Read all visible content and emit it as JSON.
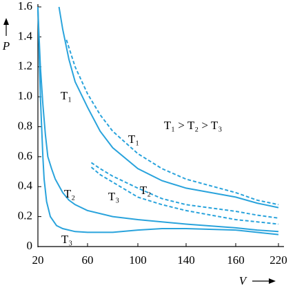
{
  "chart_data": {
    "type": "line",
    "x_label": "V",
    "y_label": "P",
    "annotation": "T₁ > T₂ > T₃",
    "xlim": [
      20,
      220
    ],
    "xticks": [
      20,
      60,
      100,
      140,
      160,
      220
    ],
    "ylim": [
      0,
      1.6
    ],
    "yticks": [
      0,
      0.2,
      0.4,
      0.6,
      0.8,
      {
        "value": 1,
        "label": "1.0"
      },
      1.2,
      1.4,
      1.6
    ],
    "grid": false,
    "series": [
      {
        "name": "T₁",
        "color": "#29a3dc",
        "dashed": false,
        "x": [
          37,
          40,
          45,
          50,
          60,
          70,
          80,
          100,
          120,
          140,
          160,
          190,
          220
        ],
        "values": [
          1.6,
          1.45,
          1.25,
          1.1,
          0.93,
          0.77,
          0.66,
          0.52,
          0.44,
          0.39,
          0.33,
          0.29,
          0.26
        ]
      },
      {
        "name": "T₂",
        "color": "#29a3dc",
        "dashed": false,
        "x": [
          20,
          22,
          24,
          26,
          28,
          31,
          34,
          40,
          45,
          50,
          60,
          80,
          100,
          140,
          160,
          190,
          220
        ],
        "values": [
          1.58,
          1.2,
          0.95,
          0.75,
          0.6,
          0.52,
          0.45,
          0.36,
          0.31,
          0.28,
          0.24,
          0.2,
          0.18,
          0.15,
          0.125,
          0.11,
          0.1
        ]
      },
      {
        "name": "T₃",
        "color": "#29a3dc",
        "dashed": false,
        "x": [
          20,
          21,
          22,
          23,
          24,
          25,
          27,
          30,
          35,
          40,
          50,
          60,
          80,
          100,
          120,
          140,
          160,
          190,
          220
        ],
        "values": [
          1.6,
          1.3,
          1.0,
          0.8,
          0.6,
          0.45,
          0.3,
          0.2,
          0.14,
          0.12,
          0.1,
          0.095,
          0.095,
          0.11,
          0.12,
          0.12,
          0.11,
          0.095,
          0.08
        ]
      },
      {
        "name": "T₁",
        "color": "#29a3dc",
        "dashed": true,
        "x": [
          43,
          50,
          60,
          70,
          80,
          100,
          120,
          140,
          160,
          190,
          220
        ],
        "values": [
          1.38,
          1.2,
          1.02,
          0.88,
          0.77,
          0.62,
          0.52,
          0.45,
          0.36,
          0.31,
          0.28
        ]
      },
      {
        "name": "T₂",
        "color": "#29a3dc",
        "dashed": true,
        "x": [
          63,
          70,
          80,
          100,
          120,
          140,
          160,
          190,
          220
        ],
        "values": [
          0.56,
          0.52,
          0.47,
          0.39,
          0.32,
          0.28,
          0.235,
          0.21,
          0.19
        ]
      },
      {
        "name": "T₃",
        "color": "#29a3dc",
        "dashed": true,
        "x": [
          63,
          70,
          80,
          100,
          120,
          140,
          160,
          190,
          220
        ],
        "values": [
          0.53,
          0.48,
          0.43,
          0.33,
          0.28,
          0.24,
          0.18,
          0.165,
          0.15
        ]
      }
    ]
  }
}
